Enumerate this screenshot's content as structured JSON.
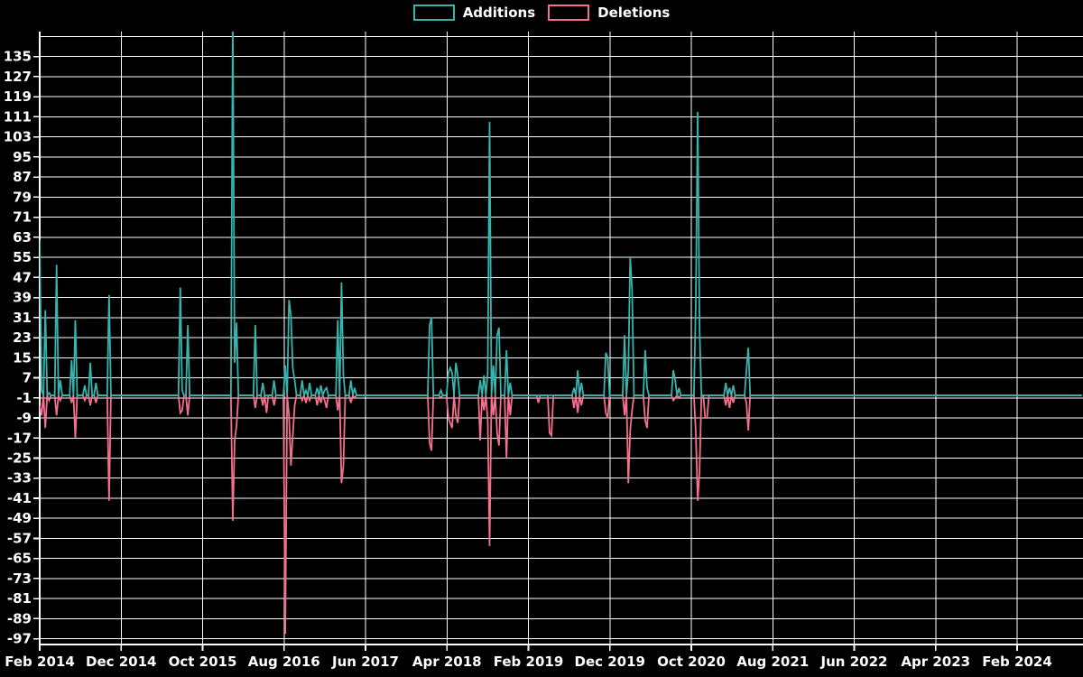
{
  "legend": {
    "items": [
      {
        "label": "Additions",
        "color": "#35b5ae"
      },
      {
        "label": "Deletions",
        "color": "#f5708f"
      }
    ]
  },
  "colors": {
    "background": "#000000",
    "grid": "#ffffff",
    "axis": "#ffffff",
    "tick_text": "#ffffff",
    "additions": "#35b5ae",
    "deletions": "#f5708f"
  },
  "chart_data": {
    "type": "line",
    "title": "",
    "xlabel": "",
    "ylabel": "",
    "grid": true,
    "legend_position": "top-center",
    "ylim": [
      -99,
      145
    ],
    "y_axis": {
      "tick_min": -97,
      "tick_max": 135,
      "tick_step": 8,
      "tick_labels": [
        "135",
        "127",
        "119",
        "111",
        "103",
        "95",
        "87",
        "79",
        "71",
        "63",
        "55",
        "47",
        "39",
        "31",
        "23",
        "15",
        "7",
        "-1",
        "-9",
        "-17",
        "-25",
        "-33",
        "-41",
        "-49",
        "-57",
        "-65",
        "-73",
        "-81",
        "-89",
        "-97"
      ],
      "unlabeled_top_gridline_value": 143
    },
    "x_axis": {
      "tick_labels": [
        "Feb 2014",
        "Dec 2014",
        "Oct 2015",
        "Aug 2016",
        "Jun 2017",
        "Apr 2018",
        "Feb 2019",
        "Dec 2019",
        "Oct 2020",
        "Aug 2021",
        "Jun 2022",
        "Apr 2023",
        "Feb 2024"
      ],
      "tick_interval_months": 10,
      "points_per_month_approx": 4.345
    },
    "weeks_total": 557,
    "spikes_format": "[week_index_from_Feb_2014, value]; weeks not listed have value 0",
    "series": [
      {
        "name": "Additions",
        "color": "#35b5ae",
        "baseline": 0,
        "spikes": [
          [
            0,
            62
          ],
          [
            1,
            2
          ],
          [
            3,
            34
          ],
          [
            5,
            1
          ],
          [
            9,
            52
          ],
          [
            11,
            6
          ],
          [
            17,
            14
          ],
          [
            19,
            30
          ],
          [
            24,
            4
          ],
          [
            27,
            13
          ],
          [
            30,
            5
          ],
          [
            37,
            40
          ],
          [
            75,
            43
          ],
          [
            76,
            2
          ],
          [
            79,
            28
          ],
          [
            103,
            150
          ],
          [
            104,
            13
          ],
          [
            105,
            29
          ],
          [
            115,
            28
          ],
          [
            119,
            5
          ],
          [
            125,
            6
          ],
          [
            131,
            12
          ],
          [
            133,
            38
          ],
          [
            134,
            32
          ],
          [
            135,
            11
          ],
          [
            136,
            6
          ],
          [
            140,
            6
          ],
          [
            142,
            2
          ],
          [
            144,
            5
          ],
          [
            148,
            3
          ],
          [
            150,
            4
          ],
          [
            152,
            2
          ],
          [
            153,
            3
          ],
          [
            159,
            30
          ],
          [
            161,
            45
          ],
          [
            162,
            8
          ],
          [
            166,
            6
          ],
          [
            168,
            3
          ],
          [
            208,
            28
          ],
          [
            209,
            31
          ],
          [
            214,
            2
          ],
          [
            218,
            9
          ],
          [
            219,
            11
          ],
          [
            220,
            9
          ],
          [
            222,
            13
          ],
          [
            223,
            8
          ],
          [
            235,
            6
          ],
          [
            237,
            8
          ],
          [
            239,
            9
          ],
          [
            240,
            109
          ],
          [
            242,
            12
          ],
          [
            244,
            24
          ],
          [
            245,
            27
          ],
          [
            249,
            18
          ],
          [
            251,
            5
          ],
          [
            285,
            3
          ],
          [
            287,
            10
          ],
          [
            289,
            5
          ],
          [
            302,
            17
          ],
          [
            303,
            15
          ],
          [
            312,
            24
          ],
          [
            314,
            10
          ],
          [
            315,
            55
          ],
          [
            316,
            42
          ],
          [
            323,
            18
          ],
          [
            324,
            3
          ],
          [
            338,
            10
          ],
          [
            339,
            6
          ],
          [
            341,
            3
          ],
          [
            350,
            37
          ],
          [
            351,
            113
          ],
          [
            352,
            26
          ],
          [
            366,
            5
          ],
          [
            368,
            3
          ],
          [
            370,
            4
          ],
          [
            377,
            10
          ],
          [
            378,
            19
          ]
        ]
      },
      {
        "name": "Deletions",
        "color": "#f5708f",
        "baseline": 0,
        "spikes": [
          [
            0,
            -4
          ],
          [
            1,
            -8
          ],
          [
            3,
            -13
          ],
          [
            5,
            -2
          ],
          [
            9,
            -8
          ],
          [
            11,
            -2
          ],
          [
            17,
            -3
          ],
          [
            19,
            -17
          ],
          [
            24,
            -2
          ],
          [
            27,
            -4
          ],
          [
            30,
            -3
          ],
          [
            37,
            -42
          ],
          [
            75,
            -7
          ],
          [
            76,
            -6
          ],
          [
            79,
            -8
          ],
          [
            103,
            -50
          ],
          [
            104,
            -18
          ],
          [
            105,
            -12
          ],
          [
            115,
            -5
          ],
          [
            119,
            -4
          ],
          [
            121,
            -7
          ],
          [
            125,
            -4
          ],
          [
            131,
            -95
          ],
          [
            133,
            -8
          ],
          [
            134,
            -28
          ],
          [
            135,
            -16
          ],
          [
            136,
            -4
          ],
          [
            140,
            -2
          ],
          [
            142,
            -3
          ],
          [
            144,
            -2
          ],
          [
            148,
            -4
          ],
          [
            150,
            -3
          ],
          [
            152,
            -2
          ],
          [
            153,
            -5
          ],
          [
            159,
            -6
          ],
          [
            161,
            -35
          ],
          [
            162,
            -28
          ],
          [
            166,
            -3
          ],
          [
            168,
            -1
          ],
          [
            208,
            -19
          ],
          [
            209,
            -22
          ],
          [
            214,
            -1
          ],
          [
            218,
            -9
          ],
          [
            219,
            -11
          ],
          [
            220,
            -13
          ],
          [
            222,
            -8
          ],
          [
            223,
            -11
          ],
          [
            235,
            -18
          ],
          [
            237,
            -6
          ],
          [
            239,
            -10
          ],
          [
            240,
            -60
          ],
          [
            242,
            -8
          ],
          [
            244,
            -15
          ],
          [
            245,
            -20
          ],
          [
            249,
            -25
          ],
          [
            251,
            -8
          ],
          [
            266,
            -3
          ],
          [
            272,
            -15
          ],
          [
            273,
            -16
          ],
          [
            285,
            -5
          ],
          [
            287,
            -7
          ],
          [
            289,
            -4
          ],
          [
            302,
            -7
          ],
          [
            303,
            -9
          ],
          [
            312,
            -8
          ],
          [
            314,
            -35
          ],
          [
            315,
            -14
          ],
          [
            316,
            -6
          ],
          [
            323,
            -10
          ],
          [
            324,
            -13
          ],
          [
            338,
            -2
          ],
          [
            339,
            -1
          ],
          [
            341,
            -1
          ],
          [
            350,
            -15
          ],
          [
            351,
            -42
          ],
          [
            352,
            -30
          ],
          [
            355,
            -9
          ],
          [
            356,
            -9
          ],
          [
            366,
            -4
          ],
          [
            368,
            -5
          ],
          [
            370,
            -3
          ],
          [
            377,
            -3
          ],
          [
            378,
            -14
          ]
        ]
      }
    ]
  }
}
